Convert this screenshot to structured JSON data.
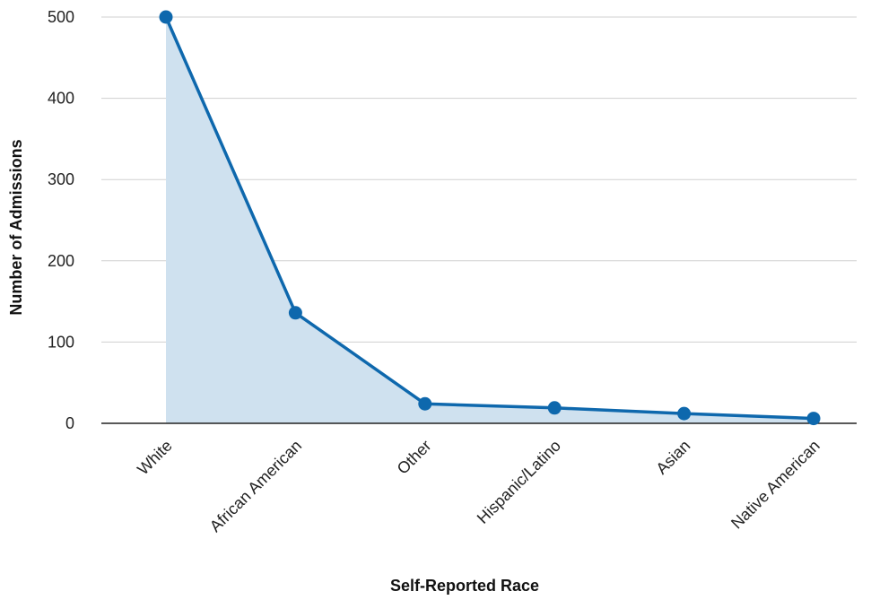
{
  "chart_data": {
    "type": "area",
    "title": "",
    "xlabel": "Self-Reported Race",
    "ylabel": "Number of Admissions",
    "categories": [
      "White",
      "African American",
      "Other",
      "Hispanic/Latino",
      "Asian",
      "Native American"
    ],
    "series": [
      {
        "values": [
          500,
          136,
          24,
          19,
          12,
          6
        ]
      }
    ],
    "ylim": [
      0,
      500
    ],
    "yticks": [
      0,
      100,
      200,
      300,
      400,
      500
    ],
    "grid": true,
    "legend": "none",
    "colors": {
      "line": "#0e68ad",
      "fill": "#cfe1ef",
      "grid": "#d0d0d0",
      "axis": "#222222"
    }
  }
}
